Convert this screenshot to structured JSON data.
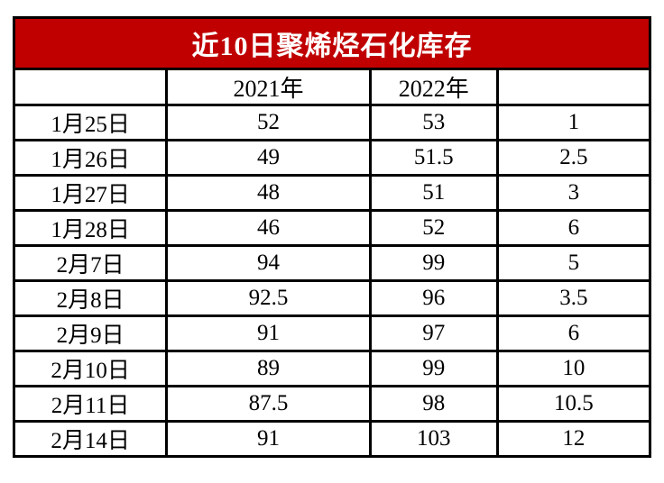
{
  "title": "近10日聚烯烃石化库存",
  "colors": {
    "title_bg": "#C00000",
    "title_text": "#FFFFFF",
    "border": "#000000",
    "cell_bg": "#FFFFFF",
    "cell_text": "#000000"
  },
  "header": {
    "date": "",
    "y2021": "2021年",
    "y2022": "2022年",
    "diff": ""
  },
  "chart_data": {
    "type": "table",
    "title": "近10日聚烯烃石化库存",
    "columns": [
      "",
      "2021年",
      "2022年",
      ""
    ],
    "rows": [
      [
        "1月25日",
        "52",
        "53",
        "1"
      ],
      [
        "1月26日",
        "49",
        "51.5",
        "2.5"
      ],
      [
        "1月27日",
        "48",
        "51",
        "3"
      ],
      [
        "1月28日",
        "46",
        "52",
        "6"
      ],
      [
        "2月7日",
        "94",
        "99",
        "5"
      ],
      [
        "2月8日",
        "92.5",
        "96",
        "3.5"
      ],
      [
        "2月9日",
        "91",
        "97",
        "6"
      ],
      [
        "2月10日",
        "89",
        "99",
        "10"
      ],
      [
        "2月11日",
        "87.5",
        "98",
        "10.5"
      ],
      [
        "2月14日",
        "91",
        "103",
        "12"
      ]
    ]
  }
}
